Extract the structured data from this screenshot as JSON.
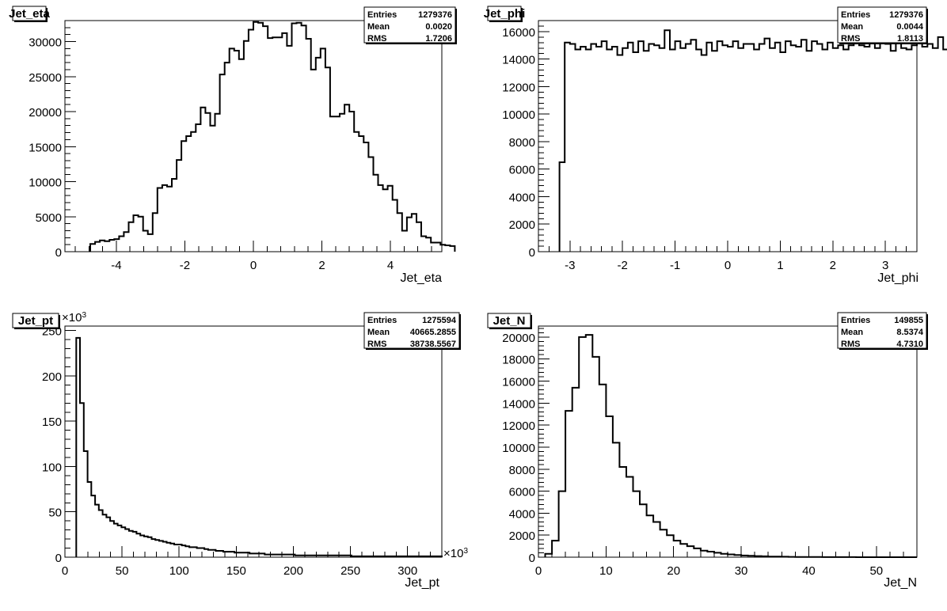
{
  "chart_data": [
    {
      "type": "histogram",
      "title": "Jet_eta",
      "xlabel": "Jet_eta",
      "ylabel": "",
      "xlim": [
        -5.5,
        5.5
      ],
      "ylim": [
        0,
        33000
      ],
      "xticks": [
        -4,
        -2,
        0,
        2,
        4
      ],
      "yticks": [
        0,
        5000,
        10000,
        15000,
        20000,
        25000,
        30000
      ],
      "x_multiplier": "",
      "y_multiplier": "",
      "stats": {
        "entries": "1279376",
        "mean": "0.0020",
        "rms": "1.7206"
      },
      "bin_width": 0.14,
      "x_start": -4.76,
      "counts": [
        1100,
        1400,
        1600,
        1500,
        1700,
        1800,
        2200,
        2800,
        4200,
        5200,
        5000,
        3000,
        2500,
        5500,
        9100,
        9500,
        9300,
        10400,
        13100,
        15800,
        16500,
        17100,
        18200,
        20600,
        19800,
        18000,
        19700,
        25300,
        27000,
        29000,
        28700,
        27500,
        30100,
        31700,
        32800,
        32700,
        32200,
        30500,
        30600,
        30600,
        31200,
        29400,
        32600,
        32700,
        32300,
        30400,
        26000,
        27700,
        29000,
        26300,
        19300,
        19300,
        19700,
        21000,
        20000,
        17100,
        16500,
        15600,
        13500,
        11000,
        9500,
        8900,
        9400,
        7400,
        5500,
        3000,
        4900,
        5400,
        4200,
        2200,
        2000,
        1300,
        1300,
        1000,
        900,
        800
      ],
      "x_reversed": false
    },
    {
      "type": "histogram",
      "title": "Jet_phi",
      "xlabel": "Jet_phi",
      "ylabel": "",
      "xlim": [
        -3.6,
        3.6
      ],
      "ylim": [
        0,
        16800
      ],
      "xticks": [
        -3,
        -2,
        -1,
        0,
        1,
        2,
        3
      ],
      "yticks": [
        0,
        2000,
        4000,
        6000,
        8000,
        10000,
        12000,
        14000,
        16000
      ],
      "x_multiplier": "",
      "y_multiplier": "",
      "stats": {
        "entries": "1279376",
        "mean": "0.0044",
        "rms": "1.8113"
      },
      "bin_width": 0.1,
      "x_start": -3.2,
      "counts": [
        6500,
        15200,
        15100,
        14700,
        14900,
        14700,
        15100,
        14900,
        15300,
        14700,
        14900,
        14300,
        14800,
        15200,
        14500,
        15300,
        14600,
        15100,
        15000,
        14800,
        16100,
        14700,
        15300,
        14800,
        15100,
        15400,
        14700,
        14300,
        15200,
        14600,
        15300,
        15000,
        14900,
        15300,
        14800,
        15100,
        15100,
        14700,
        15100,
        15500,
        14800,
        15200,
        14500,
        15300,
        15000,
        14900,
        15400,
        14600,
        15300,
        15100,
        14700,
        15200,
        14800,
        15000,
        14700,
        15000,
        16100,
        15000,
        14900,
        15600,
        14800,
        15300,
        15100,
        14600,
        15200,
        14800,
        14700,
        15000,
        15600,
        14900,
        15100,
        14800,
        15600,
        14700,
        14900,
        15300,
        6300
      ],
      "x_reversed": false
    },
    {
      "type": "histogram",
      "title": "Jet_pt",
      "xlabel": "Jet_pt",
      "ylabel": "",
      "xlim": [
        0,
        330
      ],
      "ylim": [
        0,
        255
      ],
      "xticks": [
        0,
        50,
        100,
        150,
        200,
        250,
        300
      ],
      "yticks": [
        0,
        50,
        100,
        150,
        200,
        250
      ],
      "x_multiplier": "×10",
      "y_multiplier": "×10",
      "multiplier_exponent": "3",
      "stats": {
        "entries": "1275594",
        "mean": "40665.2855",
        "rms": "38738.5567"
      },
      "bin_width": 3.3,
      "x_start": 9.9,
      "counts": [
        242,
        170,
        117,
        83,
        68,
        58,
        52,
        47,
        44,
        40,
        37,
        35,
        33,
        31,
        29,
        28,
        26,
        24,
        23,
        22,
        20,
        19,
        18,
        17,
        16,
        15,
        14,
        14,
        13,
        12,
        11,
        11,
        10,
        10,
        9,
        8,
        8,
        7,
        7,
        6,
        6,
        6,
        5,
        5,
        5,
        5,
        4,
        4,
        4,
        4,
        3,
        3,
        3,
        3,
        3,
        3,
        3,
        3,
        2,
        2,
        2,
        2,
        2,
        2,
        2,
        2,
        2,
        2,
        2,
        2,
        2,
        2,
        2,
        1,
        1,
        1,
        1,
        1,
        1,
        1,
        1,
        1,
        1,
        1,
        1,
        1,
        1,
        1,
        1,
        1,
        1,
        1,
        1,
        1,
        1,
        1,
        1
      ],
      "x_reversed": false
    },
    {
      "type": "histogram",
      "title": "Jet_N",
      "xlabel": "Jet_N",
      "ylabel": "",
      "xlim": [
        0,
        56
      ],
      "ylim": [
        0,
        21000
      ],
      "xticks": [
        0,
        10,
        20,
        30,
        40,
        50
      ],
      "yticks": [
        0,
        2000,
        4000,
        6000,
        8000,
        10000,
        12000,
        14000,
        16000,
        18000,
        20000
      ],
      "x_multiplier": "",
      "y_multiplier": "",
      "stats": {
        "entries": "149855",
        "mean": "8.5374",
        "rms": "4.7310"
      },
      "bin_width": 1,
      "x_start": 1,
      "counts": [
        300,
        1500,
        6000,
        13300,
        15400,
        20000,
        20200,
        18200,
        15700,
        12800,
        10400,
        8200,
        7300,
        6000,
        4800,
        3800,
        3200,
        2500,
        2000,
        1500,
        1200,
        1000,
        800,
        600,
        500,
        400,
        300,
        250,
        200,
        150,
        120,
        100,
        80,
        60,
        50,
        40,
        30,
        25,
        20,
        15,
        12,
        10,
        8,
        6,
        5,
        4,
        3,
        2,
        2,
        1,
        1,
        1,
        1,
        1,
        1
      ],
      "x_reversed": false
    }
  ],
  "stat_labels": {
    "entries": "Entries",
    "mean": "Mean",
    "rms": "RMS"
  }
}
